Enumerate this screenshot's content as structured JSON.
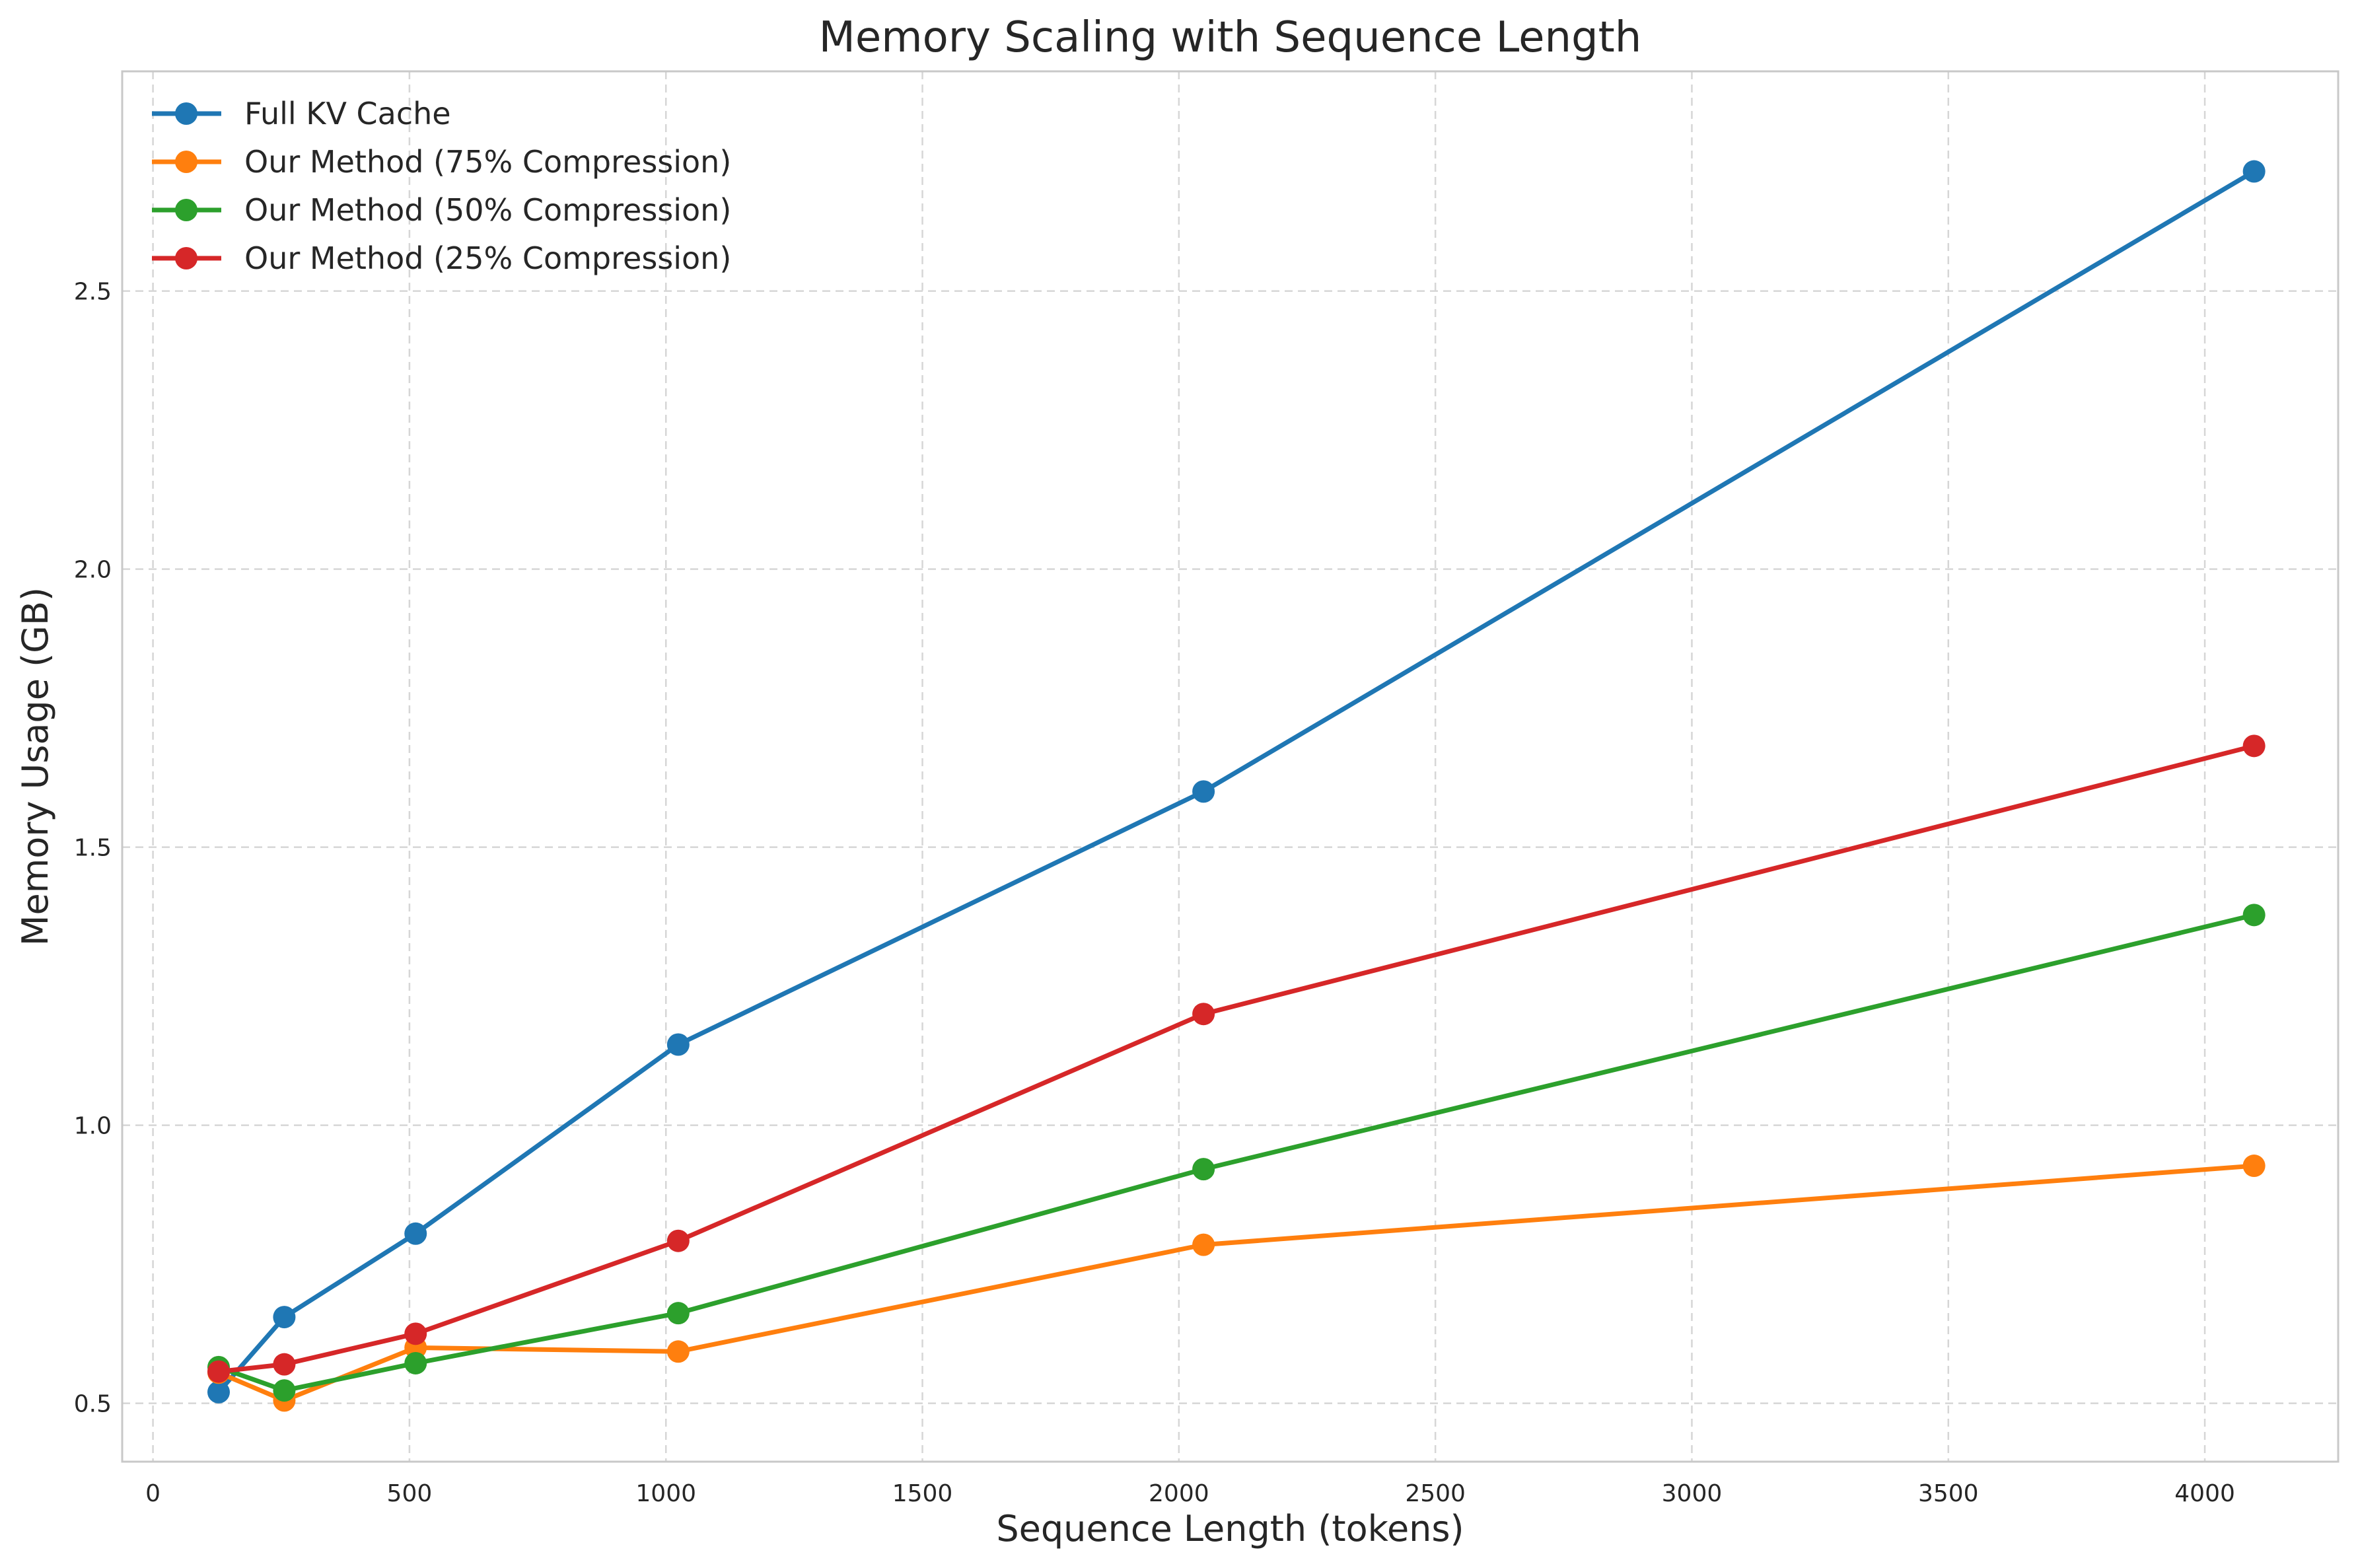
{
  "chart_data": {
    "type": "line",
    "title": "Memory Scaling with Sequence Length",
    "xlabel": "Sequence Length (tokens)",
    "ylabel": "Memory Usage (GB)",
    "xlim": [
      -60,
      4260
    ],
    "ylim": [
      0.395,
      2.895
    ],
    "xticks": [
      0,
      500,
      1000,
      1500,
      2000,
      2500,
      3000,
      3500,
      4000
    ],
    "xtick_labels": [
      "0",
      "500",
      "1000",
      "1500",
      "2000",
      "2500",
      "3000",
      "3500",
      "4000"
    ],
    "yticks": [
      0.5,
      1.0,
      1.5,
      2.0,
      2.5
    ],
    "ytick_labels": [
      "0.5",
      "1.0",
      "1.5",
      "2.0",
      "2.5"
    ],
    "grid": true,
    "legend_position": "top-left",
    "x": [
      128,
      256,
      512,
      1024,
      2048,
      4096
    ],
    "series": [
      {
        "name": "Full KV Cache",
        "color": "#1f77b4",
        "values": [
          0.52,
          0.655,
          0.805,
          1.145,
          1.6,
          2.715
        ]
      },
      {
        "name": "Our Method (75% Compression)",
        "color": "#ff7f0e",
        "values": [
          0.555,
          0.505,
          0.6,
          0.593,
          0.785,
          0.927
        ]
      },
      {
        "name": "Our Method (50% Compression)",
        "color": "#2ca02c",
        "values": [
          0.565,
          0.523,
          0.572,
          0.662,
          0.921,
          1.378
        ]
      },
      {
        "name": "Our Method (25% Compression)",
        "color": "#d62728",
        "values": [
          0.557,
          0.57,
          0.625,
          0.792,
          1.2,
          1.682
        ]
      }
    ]
  }
}
